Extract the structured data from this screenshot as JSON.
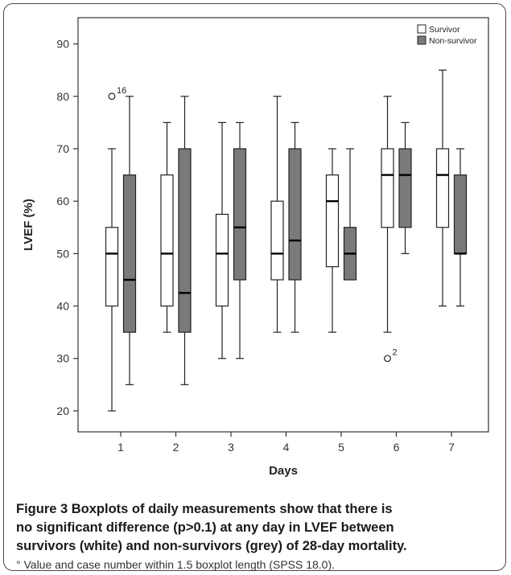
{
  "chart_data": {
    "type": "boxplot",
    "xlabel": "Days",
    "ylabel": "LVEF (%)",
    "categories": [
      "1",
      "2",
      "3",
      "4",
      "5",
      "6",
      "7"
    ],
    "ylim": [
      16,
      95
    ],
    "yticks": [
      20,
      30,
      40,
      50,
      60,
      70,
      80,
      90
    ],
    "legend_position": "top-right",
    "grid": false,
    "series": [
      {
        "name": "Survivor",
        "fill": "#ffffff",
        "boxes": [
          {
            "min": 20,
            "q1": 40,
            "median": 50,
            "q3": 55,
            "max": 70
          },
          {
            "min": 35,
            "q1": 40,
            "median": 50,
            "q3": 65,
            "max": 75
          },
          {
            "min": 30,
            "q1": 40,
            "median": 50,
            "q3": 57.5,
            "max": 75
          },
          {
            "min": 35,
            "q1": 45,
            "median": 50,
            "q3": 60,
            "max": 80
          },
          {
            "min": 35,
            "q1": 47.5,
            "median": 60,
            "q3": 65,
            "max": 70
          },
          {
            "min": 35,
            "q1": 55,
            "median": 65,
            "q3": 70,
            "max": 80
          },
          {
            "min": 40,
            "q1": 55,
            "median": 65,
            "q3": 70,
            "max": 85
          }
        ],
        "outliers": [
          {
            "day": "1",
            "value": 80,
            "label": "16"
          },
          {
            "day": "6",
            "value": 30,
            "label": "2"
          }
        ]
      },
      {
        "name": "Non-survivor",
        "fill": "#7a7a7a",
        "boxes": [
          {
            "min": 25,
            "q1": 35,
            "median": 45,
            "q3": 65,
            "max": 80
          },
          {
            "min": 25,
            "q1": 35,
            "median": 42.5,
            "q3": 70,
            "max": 80
          },
          {
            "min": 30,
            "q1": 45,
            "median": 55,
            "q3": 70,
            "max": 75
          },
          {
            "min": 35,
            "q1": 45,
            "median": 52.5,
            "q3": 70,
            "max": 75
          },
          {
            "min": 45,
            "q1": 45,
            "median": 50,
            "q3": 55,
            "max": 70
          },
          {
            "min": 50,
            "q1": 55,
            "median": 65,
            "q3": 70,
            "max": 75
          },
          {
            "min": 40,
            "q1": 50,
            "median": 50,
            "q3": 65,
            "max": 70
          }
        ],
        "outliers": []
      }
    ]
  },
  "caption": {
    "lines": [
      "Figure 3 Boxplots of daily measurements show that there is",
      "no significant difference (p>0.1) at any day in LVEF between",
      "survivors (white) and non-survivors (grey) of 28-day mortality."
    ],
    "note": "° Value and case number within 1.5 boxplot length (SPSS 18.0)."
  }
}
